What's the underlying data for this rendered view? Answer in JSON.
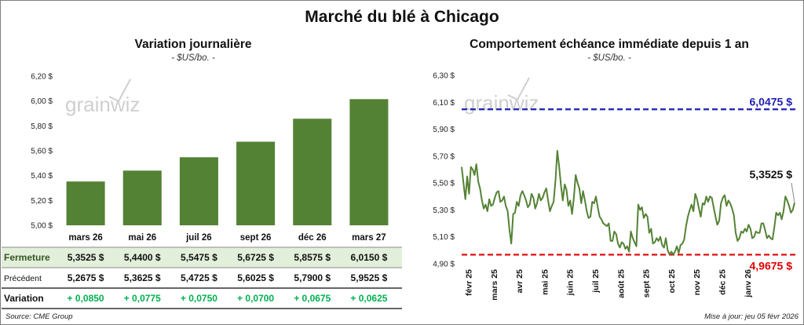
{
  "title": "Marché du blé à Chicago",
  "left": {
    "title": "Variation journalière",
    "subtitle": "- $US/bo. -",
    "logo": "grainwiz",
    "chart_data": {
      "type": "bar",
      "categories": [
        "mars 26",
        "mai 26",
        "juil 26",
        "sept 26",
        "déc 26",
        "mars 27"
      ],
      "values": [
        5.3525,
        5.44,
        5.5475,
        5.6725,
        5.8575,
        6.015
      ],
      "ylim": [
        5.0,
        6.2
      ],
      "yticks": [
        5.0,
        5.2,
        5.4,
        5.6,
        5.8,
        6.0,
        6.2
      ],
      "ytick_labels": [
        "5,00 $",
        "5,20 $",
        "5,40 $",
        "5,60 $",
        "5,80 $",
        "6,00 $",
        "6,20 $"
      ],
      "bar_color": "#548235",
      "grid": false
    },
    "table": {
      "rows": [
        {
          "label": "Fermeture",
          "values": [
            "5,3525  $",
            "5,4400  $",
            "5,5475  $",
            "5,6725  $",
            "5,8575  $",
            "6,0150  $"
          ],
          "bg": "#e2efda",
          "label_color": "#375623"
        },
        {
          "label": "Précédent",
          "values": [
            "5,2675  $",
            "5,3625  $",
            "5,4725  $",
            "5,6025  $",
            "5,7900  $",
            "5,9525  $"
          ],
          "bg": "#ffffff",
          "label_color": "#111111"
        },
        {
          "label": "Variation",
          "values": [
            "+ 0,0850",
            "+ 0,0775",
            "+ 0,0750",
            "+ 0,0700",
            "+ 0,0675",
            "+ 0,0625"
          ],
          "bg": "#ffffff",
          "label_color": "#111111",
          "value_color": "#00b050"
        }
      ]
    }
  },
  "right": {
    "title": "Comportement échéance immédiate depuis 1 an",
    "subtitle": "- $US/bo. -",
    "logo": "grainwiz",
    "chart_data": {
      "type": "line",
      "ylim": [
        4.9,
        6.3
      ],
      "yticks": [
        4.9,
        5.1,
        5.3,
        5.5,
        5.7,
        5.9,
        6.1,
        6.3
      ],
      "ytick_labels": [
        "4,90 $",
        "5,10 $",
        "5,30 $",
        "5,50 $",
        "5,70 $",
        "5,90 $",
        "6,10 $",
        "6,30 $"
      ],
      "x_labels": [
        "févr 25",
        "mars 25",
        "avr 25",
        "mai 25",
        "juin 25",
        "juil 25",
        "août 25",
        "sept 25",
        "oct 25",
        "nov 25",
        "déc 25",
        "janv 26"
      ],
      "series": [
        {
          "values": [
            5.62,
            5.5,
            5.38,
            5.55,
            5.42,
            5.62,
            5.6,
            5.56,
            5.64,
            5.51,
            5.46,
            5.37,
            5.31,
            5.34,
            5.29,
            5.38,
            5.33,
            5.34,
            5.39,
            5.43,
            5.44,
            5.36,
            5.37,
            5.4,
            5.33,
            5.29,
            5.15,
            5.05,
            5.27,
            5.28,
            5.36,
            5.33,
            5.41,
            5.44,
            5.41,
            5.37,
            5.32,
            5.34,
            5.42,
            5.39,
            5.31,
            5.35,
            5.42,
            5.37,
            5.39,
            5.43,
            5.46,
            5.37,
            5.29,
            5.33,
            5.36,
            5.52,
            5.74,
            5.62,
            5.48,
            5.37,
            5.49,
            5.45,
            5.33,
            5.37,
            5.27,
            5.39,
            5.56,
            5.5,
            5.46,
            5.35,
            5.44,
            5.37,
            5.29,
            5.24,
            5.25,
            5.36,
            5.35,
            5.4,
            5.32,
            5.25,
            5.23,
            5.2,
            5.19,
            5.18,
            5.2,
            5.07,
            5.07,
            5.14,
            5.12,
            5.05,
            5.02,
            5.06,
            5.05,
            5.01,
            5.03,
            4.99,
            5.14,
            5.09,
            5.06,
            5.03,
            5.34,
            5.3,
            5.32,
            5.24,
            5.27,
            5.25,
            5.13,
            5.16,
            5.05,
            5.06,
            5.09,
            5.07,
            5.1,
            5.04,
            5.02,
            5.09,
            5.0,
            4.97,
            4.99,
            4.97,
            4.99,
            5.03,
            4.98,
            5.04,
            5.05,
            5.08,
            5.18,
            5.25,
            5.3,
            5.34,
            5.29,
            5.42,
            5.38,
            5.31,
            5.25,
            5.35,
            5.34,
            5.4,
            5.36,
            5.4,
            5.39,
            5.32,
            5.25,
            5.19,
            5.22,
            5.35,
            5.39,
            5.41,
            5.33,
            5.37,
            5.35,
            5.31,
            5.26,
            5.13,
            5.07,
            5.09,
            5.14,
            5.13,
            5.16,
            5.14,
            5.19,
            5.16,
            5.09,
            5.1,
            5.14,
            5.13,
            5.13,
            5.2,
            5.2,
            5.15,
            5.09,
            5.11,
            5.09,
            5.08,
            5.17,
            5.28,
            5.26,
            5.28,
            5.23,
            5.29,
            5.4,
            5.37,
            5.33,
            5.28,
            5.3,
            5.3525
          ],
          "color": "#548235"
        }
      ],
      "reference_lines": [
        {
          "label": "6,0475 $",
          "value": 6.0475,
          "color": "#1f1fb4"
        },
        {
          "label": "4,9675 $",
          "value": 4.9675,
          "color": "#e00000"
        }
      ],
      "last_label": "5,3525 $",
      "grid": false
    }
  },
  "footer": {
    "source": "Source: CME Group",
    "update": "Mise à jour: jeu 05 févr 2026"
  }
}
